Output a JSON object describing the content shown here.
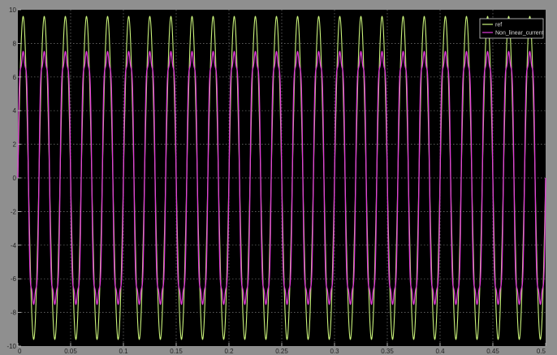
{
  "colors": {
    "outer_background": "#ffffff",
    "frame": "#8f8f8f",
    "plot_background": "#000000",
    "grid": "#7a7a7a",
    "series_ref": "#c9f27a",
    "series_nonlinear": "#e03ad8"
  },
  "chart_data": {
    "type": "line",
    "title": "",
    "xlabel": "",
    "ylabel": "",
    "xlim": [
      0,
      0.5
    ],
    "ylim": [
      -10,
      10
    ],
    "grid": true,
    "legend_position": "top-right",
    "x_ticks": [
      0,
      0.05,
      0.1,
      0.15,
      0.2,
      0.25,
      0.3,
      0.35,
      0.4,
      0.45,
      0.5
    ],
    "x_tick_labels": [
      "0",
      "0.05",
      "0.1",
      "0.15",
      "0.2",
      "0.25",
      "0.3",
      "0.35",
      "0.4",
      "0.45",
      "0.5"
    ],
    "y_ticks": [
      -10,
      -8,
      -6,
      -4,
      -2,
      0,
      2,
      4,
      6,
      8,
      10
    ],
    "y_tick_labels": [
      "-10",
      "-8",
      "-6",
      "-4",
      "-2",
      "0",
      "2",
      "4",
      "6",
      "8",
      "10"
    ],
    "series": [
      {
        "name": "ref",
        "color": "#c9f27a",
        "waveform": "sine",
        "frequency_hz": 50,
        "amplitude": 9.6,
        "phase_deg": 0
      },
      {
        "name": "Non_linear_current",
        "color": "#e03ad8",
        "waveform": "distorted-sine",
        "frequency_hz": 50,
        "amplitude": 9.2,
        "phase_deg": 0,
        "harmonic_3_ratio": 0.17,
        "harmonic_5_ratio": 0.07
      }
    ]
  }
}
